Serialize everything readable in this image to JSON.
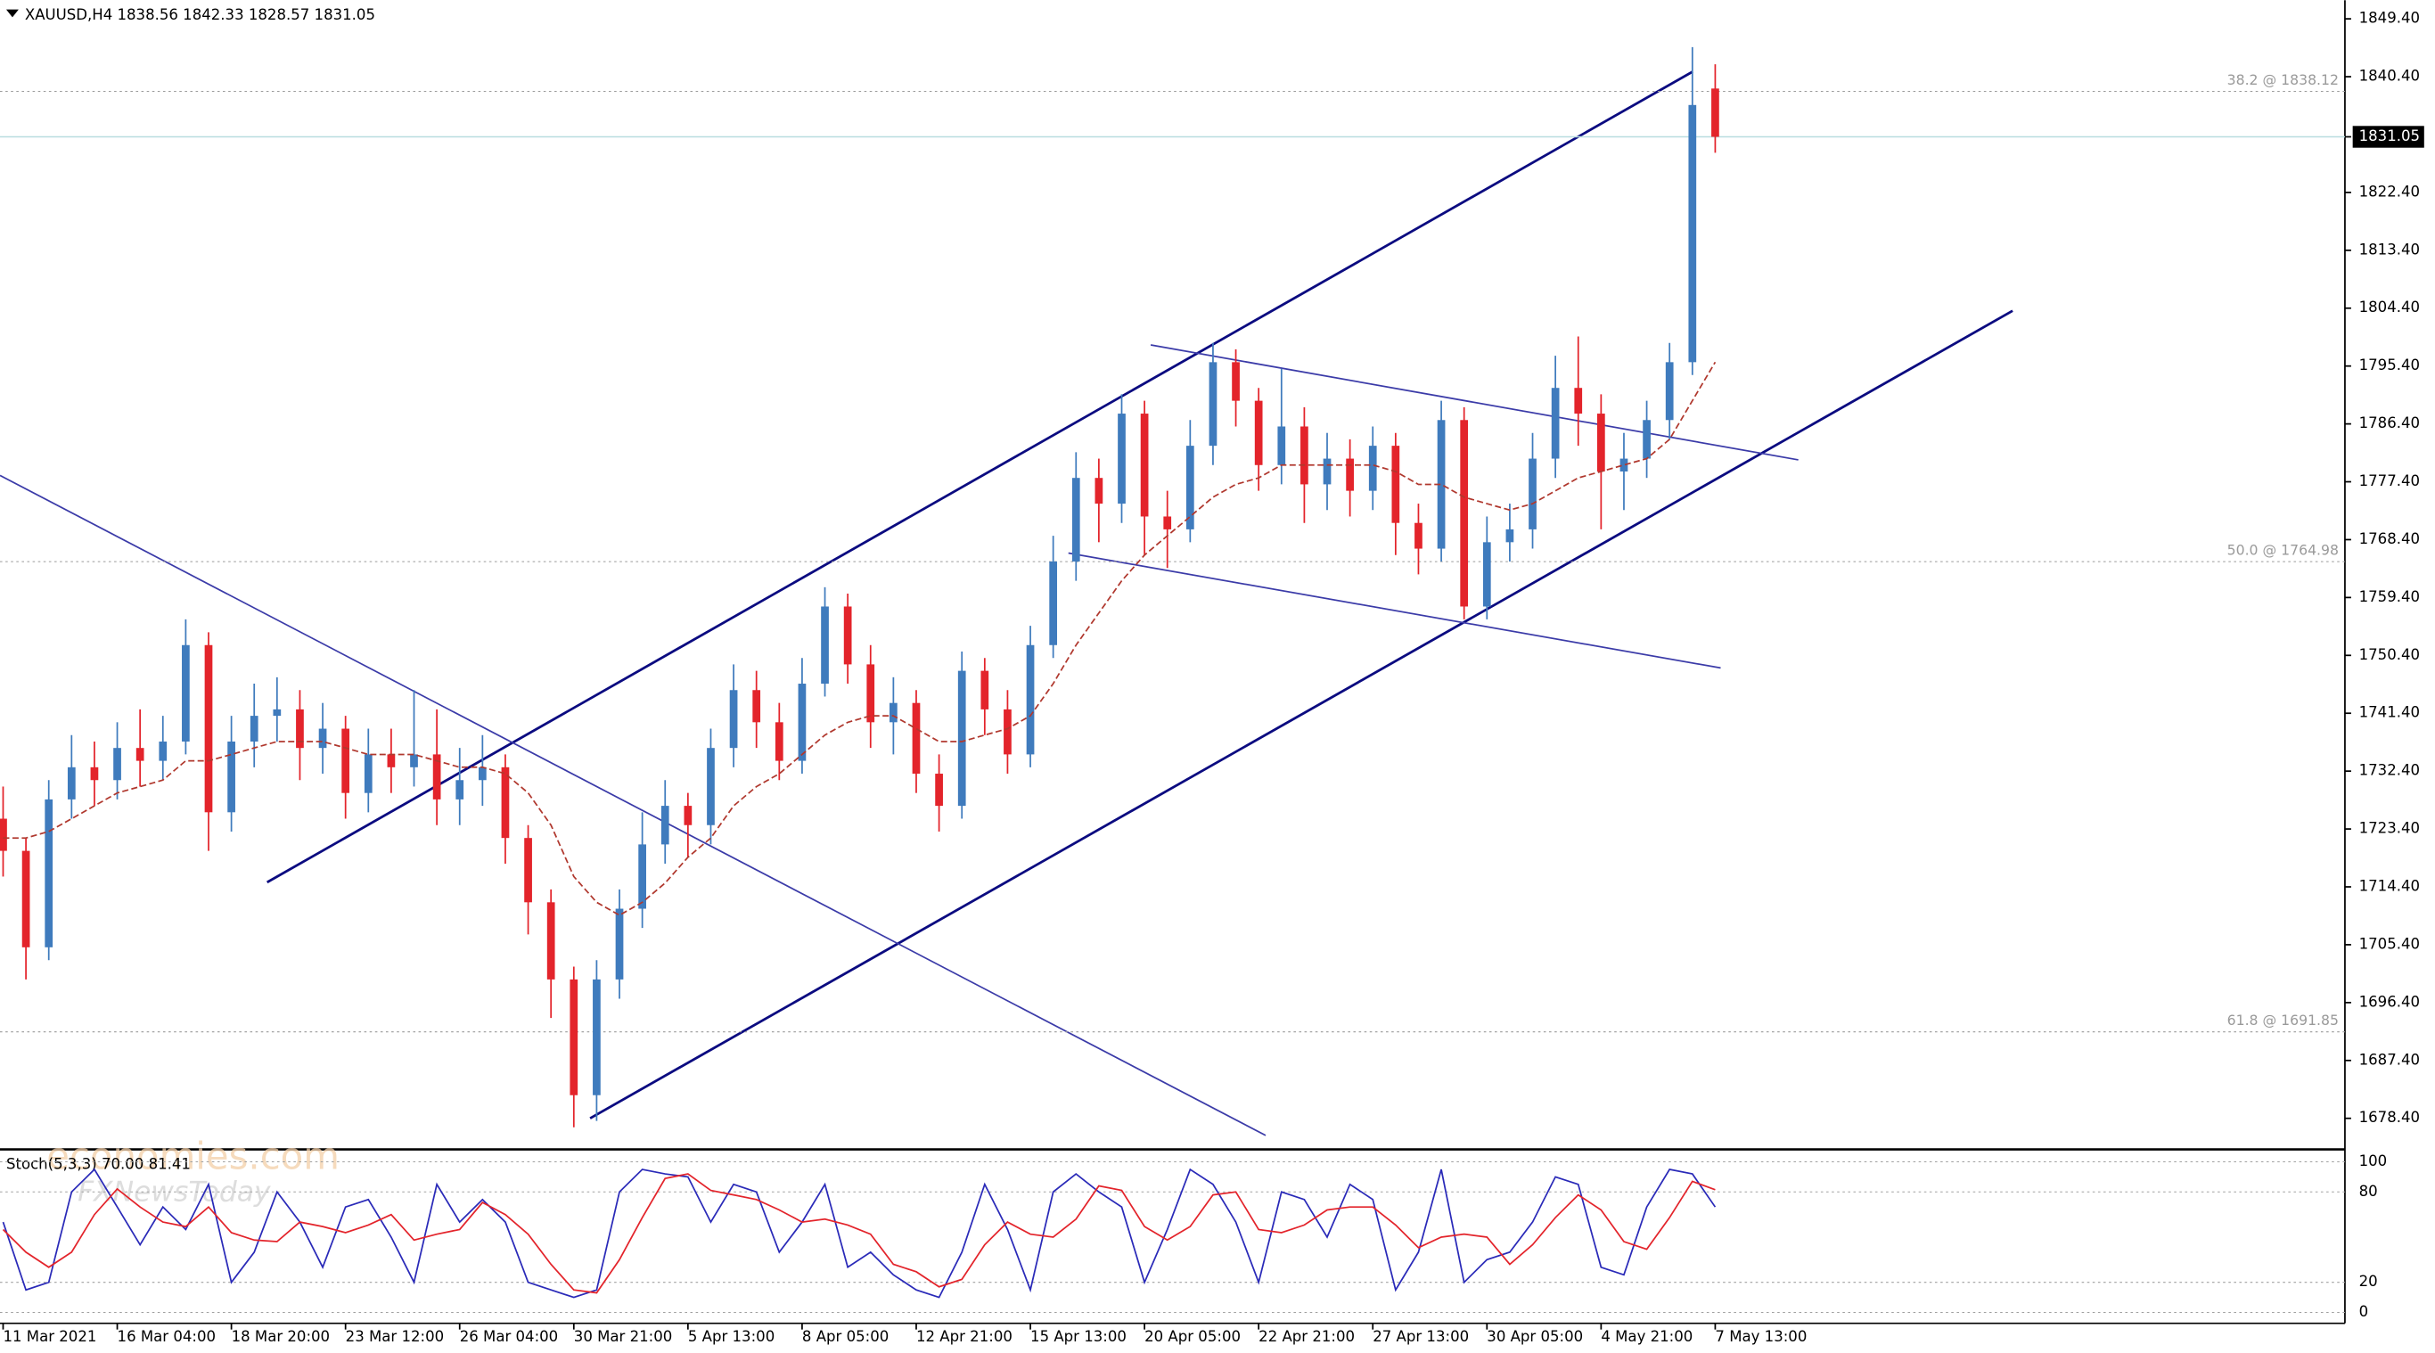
{
  "chart_data": [
    {
      "type": "candlestick",
      "title": "XAUUSD,H4  1838.56 1842.33 1828.57 1831.05",
      "watermark": [
        "economies.com",
        "FXNewsToday"
      ],
      "categories": [
        "11 Mar 2021",
        null,
        null,
        null,
        null,
        "16 Mar 04:00",
        null,
        null,
        null,
        null,
        "18 Mar 20:00",
        null,
        null,
        null,
        null,
        "23 Mar 12:00",
        null,
        null,
        null,
        null,
        "26 Mar 04:00",
        null,
        null,
        null,
        null,
        "30 Mar 21:00",
        null,
        null,
        null,
        null,
        "5 Apr 13:00",
        null,
        null,
        null,
        null,
        "8 Apr 05:00",
        null,
        null,
        null,
        null,
        "12 Apr 21:00",
        null,
        null,
        null,
        null,
        "15 Apr 13:00",
        null,
        null,
        null,
        null,
        "20 Apr 05:00",
        null,
        null,
        null,
        null,
        "22 Apr 21:00",
        null,
        null,
        null,
        null,
        "27 Apr 13:00",
        null,
        null,
        null,
        null,
        "30 Apr 05:00",
        null,
        null,
        null,
        null,
        "4 May 21:00",
        null,
        null,
        null,
        null,
        "7 May 13:00"
      ],
      "open": [
        1725,
        1720,
        1705,
        1728,
        1733,
        1731,
        1736,
        1734,
        1737,
        1752,
        1726,
        1737,
        1741,
        1742,
        1736,
        1739,
        1729,
        1735,
        1733,
        1735,
        1728,
        1731,
        1733,
        1722,
        1712,
        1700,
        1682,
        1700,
        1711,
        1721,
        1727,
        1724,
        1736,
        1745,
        1740,
        1734,
        1746,
        1758,
        1749,
        1740,
        1743,
        1732,
        1727,
        1748,
        1742,
        1735,
        1752,
        1765,
        1778,
        1774,
        1788,
        1772,
        1770,
        1783,
        1796,
        1790,
        1780,
        1786,
        1777,
        1781,
        1776,
        1783,
        1771,
        1767,
        1787,
        1758,
        1768,
        1770,
        1781,
        1792,
        1788,
        1779,
        1781,
        1787,
        1796,
        1838.56
      ],
      "high": [
        1730,
        1722,
        1731,
        1738,
        1737,
        1740,
        1742,
        1741,
        1756,
        1754,
        1741,
        1746,
        1747,
        1745,
        1743,
        1741,
        1739,
        1739,
        1745,
        1742,
        1736,
        1738,
        1735,
        1724,
        1714,
        1702,
        1703,
        1714,
        1726,
        1731,
        1729,
        1739,
        1749,
        1748,
        1743,
        1750,
        1761,
        1760,
        1752,
        1747,
        1745,
        1735,
        1751,
        1750,
        1745,
        1755,
        1769,
        1782,
        1781,
        1791,
        1790,
        1776,
        1787,
        1799,
        1798,
        1792,
        1795,
        1789,
        1785,
        1784,
        1786,
        1785,
        1774,
        1790,
        1789,
        1772,
        1774,
        1785,
        1797,
        1800,
        1791,
        1785,
        1790,
        1799,
        1845,
        1842.33
      ],
      "low": [
        1716,
        1700,
        1703,
        1725,
        1727,
        1728,
        1730,
        1731,
        1735,
        1720,
        1723,
        1733,
        1737,
        1731,
        1732,
        1725,
        1726,
        1729,
        1730,
        1724,
        1724,
        1727,
        1718,
        1707,
        1694,
        1677,
        1678,
        1697,
        1708,
        1718,
        1719,
        1721,
        1733,
        1736,
        1731,
        1732,
        1744,
        1746,
        1736,
        1735,
        1729,
        1723,
        1725,
        1738,
        1732,
        1733,
        1750,
        1762,
        1768,
        1771,
        1766,
        1764,
        1768,
        1780,
        1786,
        1776,
        1777,
        1771,
        1773,
        1772,
        1773,
        1766,
        1763,
        1765,
        1756,
        1756,
        1765,
        1767,
        1778,
        1783,
        1770,
        1773,
        1778,
        1784,
        1794,
        1828.57
      ],
      "close": [
        1720,
        1705,
        1728,
        1733,
        1731,
        1736,
        1734,
        1737,
        1752,
        1726,
        1737,
        1741,
        1742,
        1736,
        1739,
        1729,
        1735,
        1733,
        1735,
        1728,
        1731,
        1733,
        1722,
        1712,
        1700,
        1682,
        1700,
        1711,
        1721,
        1727,
        1724,
        1736,
        1745,
        1740,
        1734,
        1746,
        1758,
        1749,
        1740,
        1743,
        1732,
        1727,
        1748,
        1742,
        1735,
        1752,
        1765,
        1778,
        1774,
        1788,
        1772,
        1770,
        1783,
        1796,
        1790,
        1780,
        1786,
        1777,
        1781,
        1776,
        1783,
        1771,
        1767,
        1787,
        1758,
        1768,
        1770,
        1781,
        1792,
        1788,
        1779,
        1781,
        1787,
        1796,
        1836,
        1831.05
      ],
      "up_color": "#3f7bbd",
      "down_color": "#e3242b",
      "ma": {
        "color": "#b0382e",
        "values": [
          1722,
          1722,
          1723,
          1725,
          1727,
          1729,
          1730,
          1731,
          1734,
          1734,
          1735,
          1736,
          1737,
          1737,
          1737,
          1736,
          1735,
          1735,
          1735,
          1734,
          1733,
          1733,
          1732,
          1729,
          1724,
          1716,
          1712,
          1710,
          1712,
          1715,
          1719,
          1722,
          1727,
          1730,
          1732,
          1735,
          1738,
          1740,
          1741,
          1741,
          1739,
          1737,
          1737,
          1738,
          1739,
          1741,
          1746,
          1752,
          1757,
          1762,
          1766,
          1769,
          1772,
          1775,
          1777,
          1778,
          1780,
          1780,
          1780,
          1780,
          1780,
          1779,
          1777,
          1777,
          1775,
          1774,
          1773,
          1774,
          1776,
          1778,
          1779,
          1780,
          1781,
          1784,
          1790,
          1796
        ]
      },
      "fib_levels": [
        {
          "value": 1838.12,
          "label": "38.2 @ 1838.12"
        },
        {
          "value": 1764.98,
          "label": "50.0 @ 1764.98"
        },
        {
          "value": 1691.85,
          "label": "61.8 @ 1691.85"
        }
      ],
      "ylim": [
        1673.57,
        1852.3
      ],
      "yticks": [
        {
          "value": 1678.4,
          "label": "1678.40"
        },
        {
          "value": 1687.4,
          "label": "1687.40"
        },
        {
          "value": 1696.4,
          "label": "1696.40"
        },
        {
          "value": 1705.4,
          "label": "1705.40"
        },
        {
          "value": 1714.4,
          "label": "1714.40"
        },
        {
          "value": 1723.4,
          "label": "1723.40"
        },
        {
          "value": 1732.4,
          "label": "1732.40"
        },
        {
          "value": 1741.4,
          "label": "1741.40"
        },
        {
          "value": 1750.4,
          "label": "1750.40"
        },
        {
          "value": 1759.4,
          "label": "1759.40"
        },
        {
          "value": 1768.4,
          "label": "1768.40"
        },
        {
          "value": 1777.4,
          "label": "1777.40"
        },
        {
          "value": 1786.4,
          "label": "1786.40"
        },
        {
          "value": 1795.4,
          "label": "1795.40"
        },
        {
          "value": 1804.4,
          "label": "1804.40"
        },
        {
          "value": 1813.4,
          "label": "1813.40"
        },
        {
          "value": 1822.4,
          "label": "1822.40"
        },
        {
          "value": 1831.05,
          "label": "1831.05"
        },
        {
          "value": 1840.4,
          "label": "1840.40"
        },
        {
          "value": 1849.4,
          "label": "1849.40"
        }
      ]
    },
    {
      "type": "line",
      "title": "Stoch(5,3,3) 70.00 81.41",
      "series": [
        {
          "color": "#2a2ab8",
          "values": [
            60,
            15,
            20,
            80,
            95,
            70,
            45,
            70,
            55,
            85,
            20,
            40,
            80,
            60,
            30,
            70,
            75,
            50,
            20,
            85,
            60,
            75,
            60,
            20,
            15,
            10,
            15,
            80,
            95,
            92,
            90,
            60,
            85,
            80,
            40,
            60,
            85,
            30,
            40,
            25,
            15,
            10,
            40,
            85,
            55,
            15,
            80,
            92,
            80,
            70,
            20,
            55,
            95,
            85,
            60,
            20,
            80,
            75,
            50,
            85,
            75,
            15,
            40,
            95,
            20,
            35,
            40,
            60,
            90,
            85,
            30,
            25,
            70,
            95,
            92,
            70
          ]
        },
        {
          "color": "#e3242b",
          "values": [
            55,
            40,
            30,
            40,
            65,
            82,
            70,
            60,
            57,
            70,
            53,
            48,
            47,
            60,
            57,
            53,
            58,
            65,
            48,
            52,
            55,
            73,
            65,
            52,
            32,
            15,
            13,
            35,
            63,
            89,
            92,
            81,
            78,
            75,
            68,
            60,
            62,
            58,
            52,
            32,
            27,
            17,
            22,
            45,
            60,
            52,
            50,
            62,
            84,
            81,
            57,
            48,
            57,
            78,
            80,
            55,
            53,
            58,
            68,
            70,
            70,
            58,
            43,
            50,
            52,
            50,
            32,
            45,
            63,
            78,
            68,
            47,
            42,
            63,
            87,
            81.41
          ]
        }
      ],
      "ylim": [
        0,
        100
      ],
      "yticks": [
        0,
        20,
        80,
        100
      ]
    }
  ]
}
